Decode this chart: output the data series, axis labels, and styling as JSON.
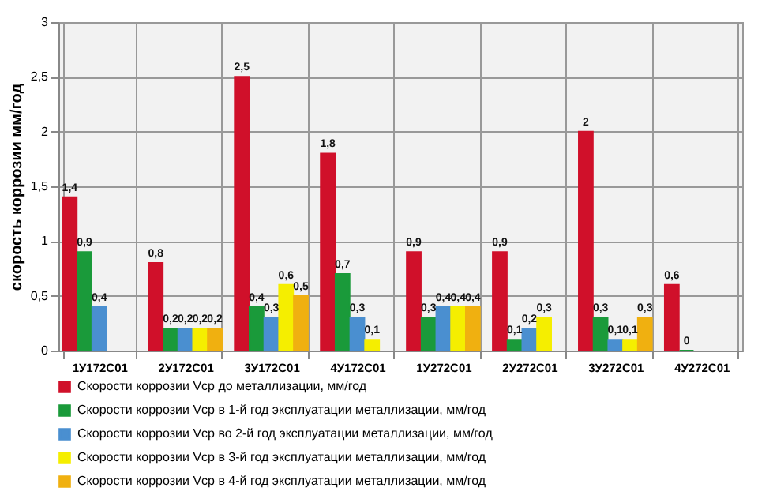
{
  "chart_data": {
    "type": "bar",
    "ylabel": "скорость коррозии  мм/год",
    "categories": [
      "1У172С01",
      "2У172С01",
      "3У172С01",
      "4У172С01",
      "1У272С01",
      "2У272С01",
      "3У272С01",
      "4У272С01"
    ],
    "series": [
      {
        "name": "Скорости коррозии Vср до металлизации, мм/год",
        "color": "#d0102a",
        "values": [
          1.4,
          0.8,
          2.5,
          1.8,
          0.9,
          0.9,
          2,
          0.6
        ],
        "value_labels": [
          "1,4",
          "0,8",
          "2,5",
          "1,8",
          "0,9",
          "0,9",
          "2",
          "0,6"
        ]
      },
      {
        "name": "Скорости коррозии Vср в 1-й год эксплуатации металлизации, мм/год",
        "color": "#1a9a3a",
        "values": [
          0.9,
          0.2,
          0.4,
          0.7,
          0.3,
          0.1,
          0.3,
          0
        ],
        "value_labels": [
          "0,9",
          "0,2",
          "0,4",
          "0,7",
          "0,3",
          "0,1",
          "0,3",
          "0"
        ]
      },
      {
        "name": "Скорости коррозии Vср во 2-й  год эксплуатации металлизации, мм/год",
        "color": "#4a8fd0",
        "values": [
          0.4,
          0.2,
          0.3,
          0.3,
          0.4,
          0.2,
          0.1,
          null
        ],
        "value_labels": [
          "0,4",
          "0,2",
          "0,3",
          "0,3",
          "0,4",
          "0,2",
          "0,1",
          null
        ]
      },
      {
        "name": "Скорости коррозии Vср в 3-й год эксплуатации металлизации, мм/год",
        "color": "#f5ee00",
        "values": [
          null,
          0.2,
          0.6,
          0.1,
          0.4,
          0.3,
          0.1,
          null
        ],
        "value_labels": [
          null,
          "0,2",
          "0,6",
          "0,1",
          "0,4",
          "0,3",
          "0,1",
          null
        ]
      },
      {
        "name": "Скорости коррозии Vср в 4-й год эксплуатации металлизации, мм/год",
        "color": "#f0b010",
        "values": [
          null,
          0.2,
          0.5,
          null,
          0.4,
          null,
          0.3,
          null
        ],
        "value_labels": [
          null,
          "0,2",
          "0,5",
          null,
          "0,4",
          null,
          "0,3",
          null
        ]
      }
    ],
    "ylim": [
      0,
      3
    ],
    "yticks": [
      0,
      {
        "value": 0.5,
        "label": "0,5"
      },
      1,
      {
        "value": 1.5,
        "label": "1,5"
      },
      2,
      {
        "value": 2.5,
        "label": "2,5"
      },
      3
    ],
    "grid": true,
    "legend": "bottom"
  }
}
